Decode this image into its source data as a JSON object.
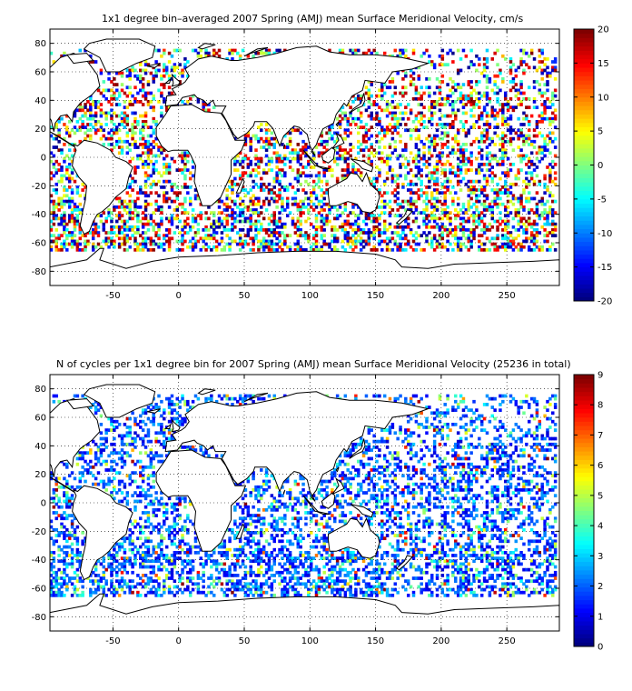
{
  "chart_data": [
    {
      "type": "heatmap",
      "title": "1x1 degree bin–averaged 2007 Spring (AMJ) mean Surface Meridional Velocity, cm/s",
      "xlim": [
        -98,
        290
      ],
      "ylim": [
        -90,
        90
      ],
      "x_ticks": [
        -50,
        0,
        50,
        100,
        150,
        200,
        250
      ],
      "y_ticks": [
        80,
        60,
        40,
        20,
        0,
        -20,
        -40,
        -60,
        -80
      ],
      "grid": true,
      "colorbar": {
        "range": [
          -20,
          20
        ],
        "ticks": [
          20,
          15,
          10,
          5,
          0,
          -5,
          -10,
          -15,
          -20
        ],
        "colormap": "jet"
      }
    },
    {
      "type": "heatmap",
      "title": "N of cycles per 1x1 degree bin for 2007 Spring (AMJ) mean Surface Meridional Velocity (25236 in total)",
      "xlim": [
        -98,
        290
      ],
      "ylim": [
        -90,
        90
      ],
      "x_ticks": [
        -50,
        0,
        50,
        100,
        150,
        200,
        250
      ],
      "y_ticks": [
        80,
        60,
        40,
        20,
        0,
        -20,
        -40,
        -60,
        -80
      ],
      "grid": true,
      "colorbar": {
        "range": [
          0,
          9
        ],
        "ticks": [
          9,
          8,
          7,
          6,
          5,
          4,
          3,
          2,
          1,
          0
        ],
        "colormap": "jet"
      }
    }
  ]
}
